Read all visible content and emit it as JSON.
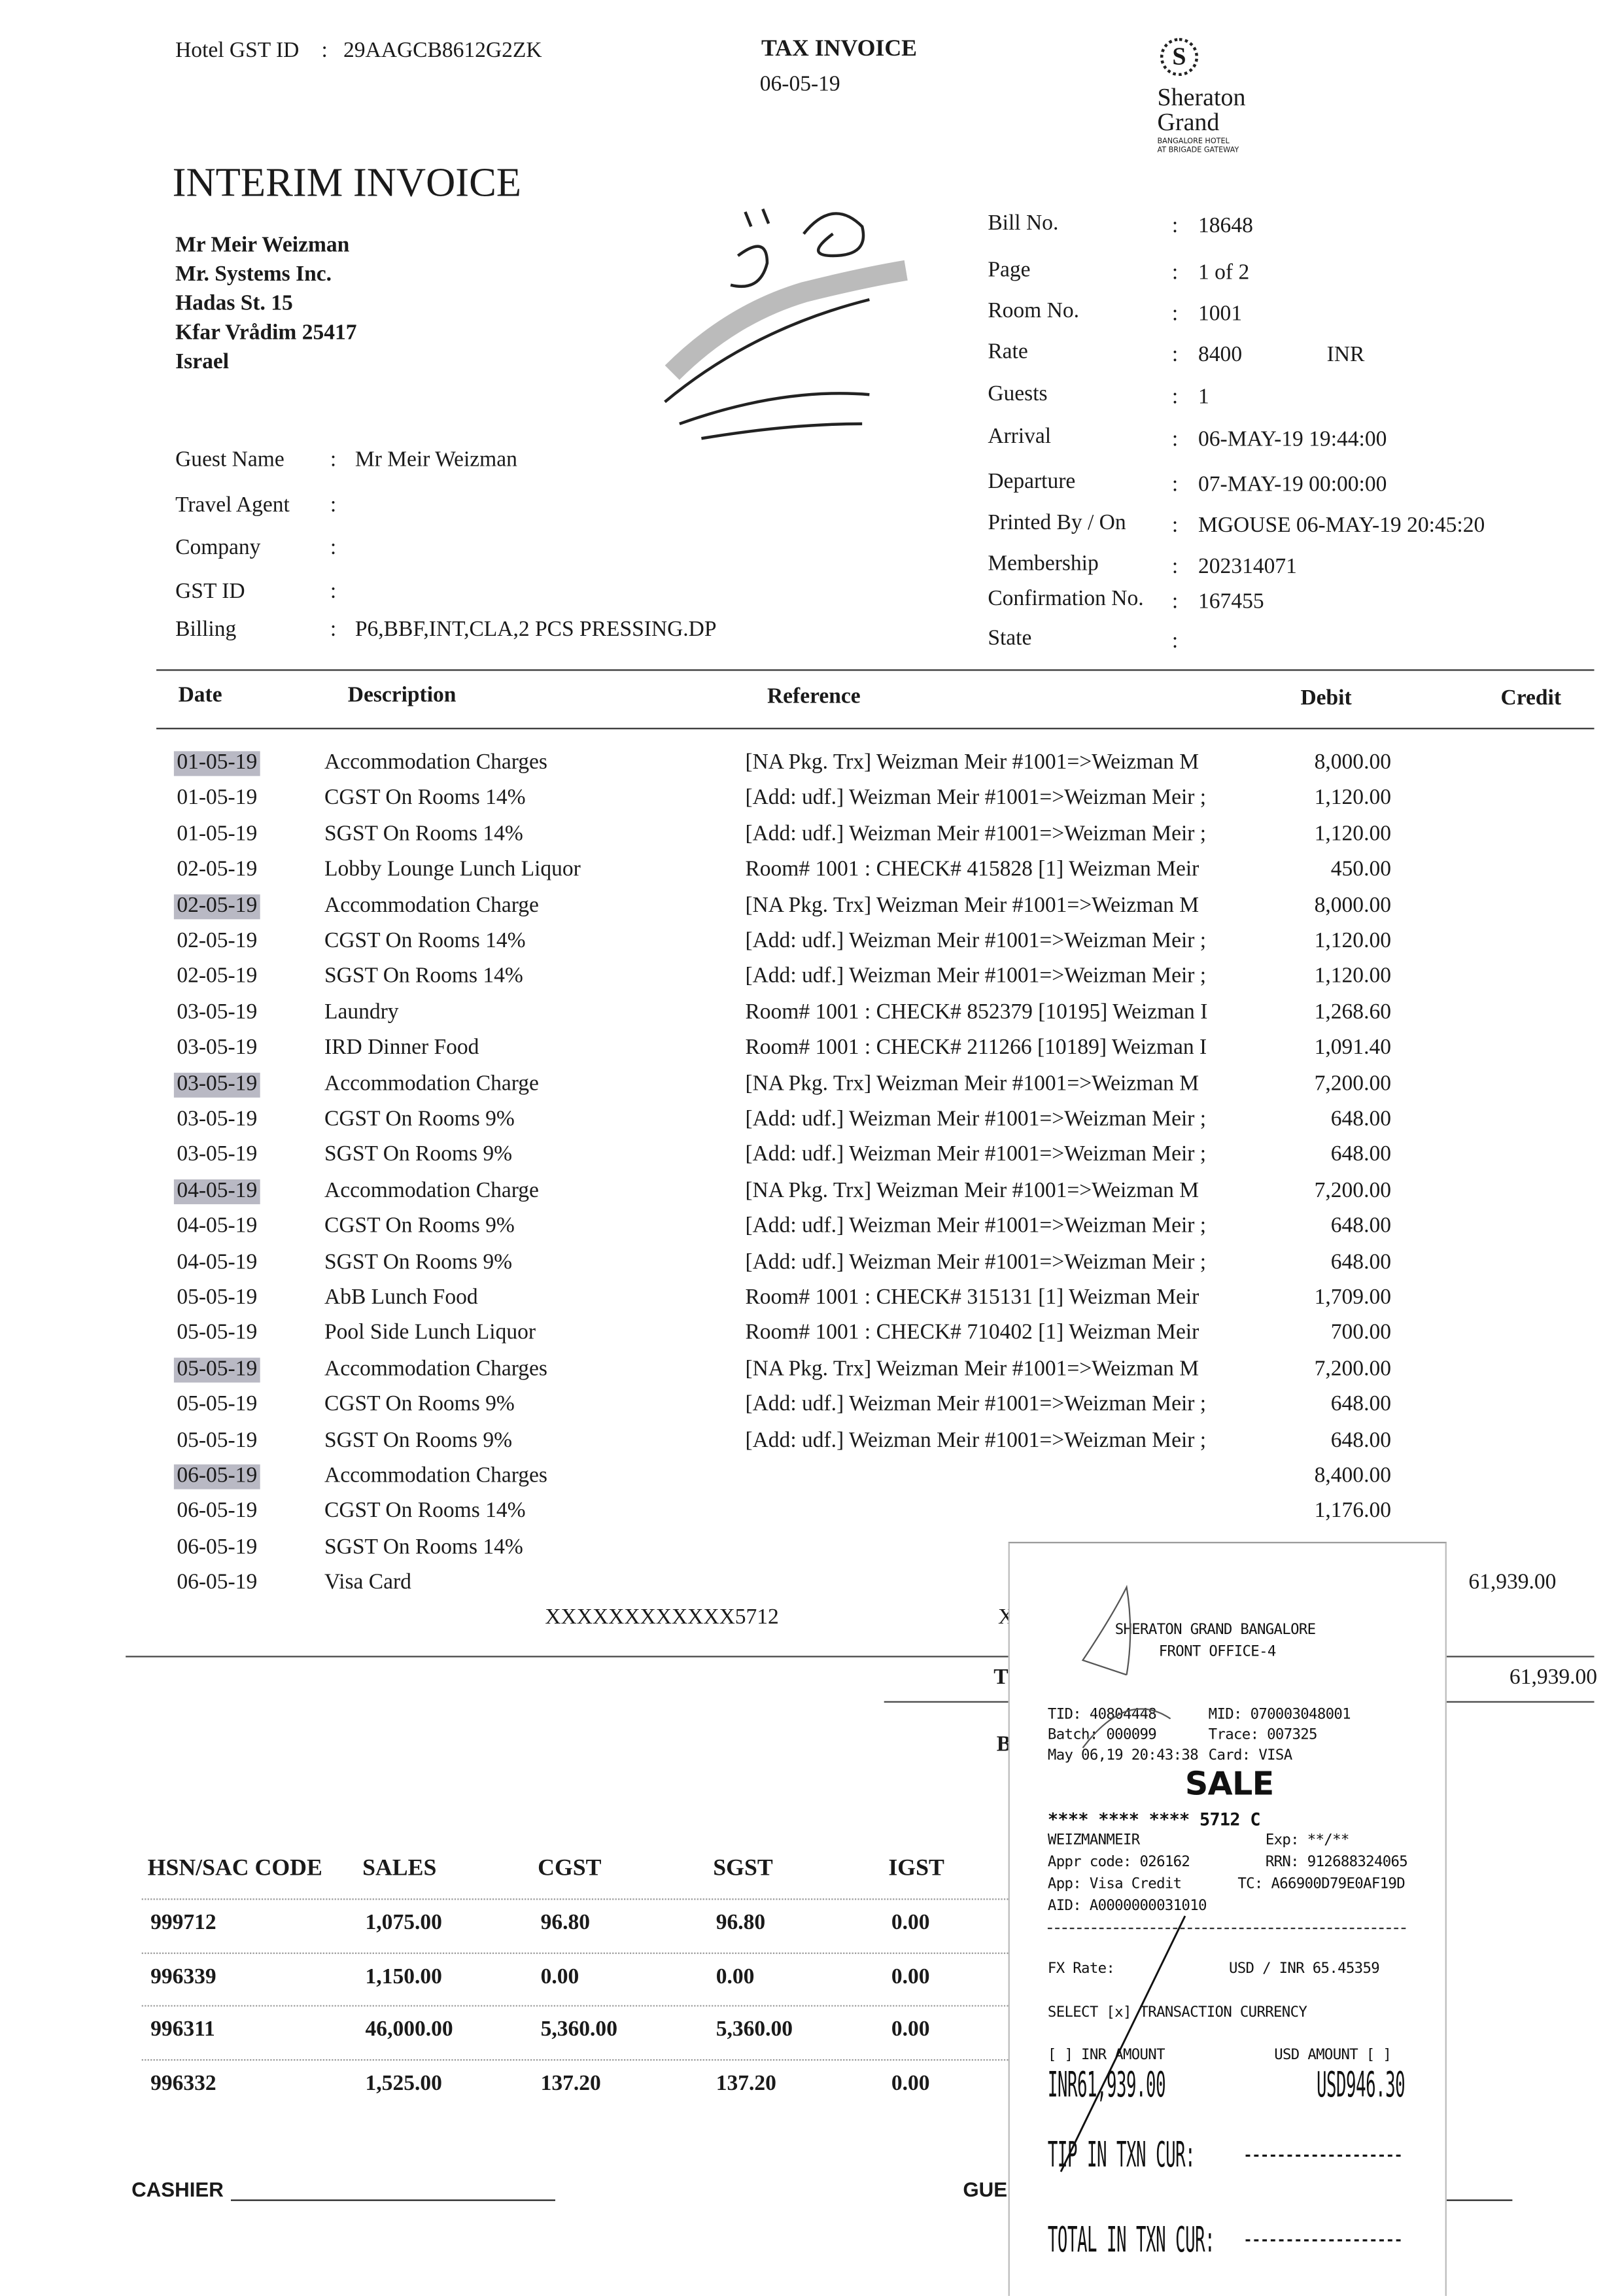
{
  "header": {
    "hotel_gst_label": "Hotel GST ID",
    "hotel_gst_id": "29AAGCB8612G2ZK",
    "doc_type": "TAX INVOICE",
    "doc_date": "06-05-19",
    "title": "INTERIM INVOICE",
    "logo": {
      "brand_line1": "Sheraton",
      "brand_line2": "Grand",
      "sub1": "BANGALORE HOTEL",
      "sub2": "AT BRIGADE GATEWAY"
    }
  },
  "address": [
    "Mr Meir Weizman",
    "Mr. Systems Inc.",
    "Hadas St. 15",
    "Kfar Vrådim  25417",
    "Israel"
  ],
  "guest_fields": [
    {
      "label": "Guest Name",
      "value": "Mr Meir Weizman"
    },
    {
      "label": "Travel Agent",
      "value": ""
    },
    {
      "label": "Company",
      "value": ""
    },
    {
      "label": "GST ID",
      "value": ""
    },
    {
      "label": "Billing",
      "value": "P6,BBF,INT,CLA,2 PCS PRESSING.DP"
    }
  ],
  "bill_fields": [
    {
      "label": "Bill  No.",
      "value": "18648"
    },
    {
      "label": "Page",
      "value": "1 of 2"
    },
    {
      "label": "Room No.",
      "value": "1001"
    },
    {
      "label": "Rate",
      "value": "8400",
      "extra": "INR"
    },
    {
      "label": "Guests",
      "value": "1"
    },
    {
      "label": "Arrival",
      "value": "06-MAY-19 19:44:00"
    },
    {
      "label": "Departure",
      "value": "07-MAY-19 00:00:00"
    },
    {
      "label": "Printed By / On",
      "value": "MGOUSE 06-MAY-19 20:45:20"
    },
    {
      "label": "Membership",
      "value": "202314071"
    },
    {
      "label": "Confirmation No.",
      "value": "167455"
    },
    {
      "label": "State",
      "value": ""
    }
  ],
  "table": {
    "columns": [
      "Date",
      "Description",
      "Reference",
      "Debit",
      "Credit"
    ],
    "rows": [
      {
        "date": "01-05-19",
        "desc": "Accommodation Charges",
        "ref": "[NA Pkg. Trx] Weizman Meir #1001=>Weizman M",
        "debit": "8,000.00",
        "credit": "",
        "hl": true
      },
      {
        "date": "01-05-19",
        "desc": "CGST On Rooms 14%",
        "ref": "[Add: udf.] Weizman Meir #1001=>Weizman Meir ;",
        "debit": "1,120.00",
        "credit": ""
      },
      {
        "date": "01-05-19",
        "desc": "SGST On Rooms 14%",
        "ref": "[Add: udf.] Weizman Meir #1001=>Weizman Meir ;",
        "debit": "1,120.00",
        "credit": ""
      },
      {
        "date": "02-05-19",
        "desc": "Lobby Lounge Lunch Liquor",
        "ref": "Room# 1001 : CHECK# 415828 [1] Weizman Meir",
        "debit": "450.00",
        "credit": ""
      },
      {
        "date": "02-05-19",
        "desc": "Accommodation Charge",
        "ref": "[NA Pkg. Trx] Weizman Meir #1001=>Weizman M",
        "debit": "8,000.00",
        "credit": "",
        "hl": true
      },
      {
        "date": "02-05-19",
        "desc": "CGST On Rooms 14%",
        "ref": "[Add: udf.] Weizman Meir #1001=>Weizman Meir ;",
        "debit": "1,120.00",
        "credit": ""
      },
      {
        "date": "02-05-19",
        "desc": "SGST On Rooms 14%",
        "ref": "[Add: udf.] Weizman Meir #1001=>Weizman Meir ;",
        "debit": "1,120.00",
        "credit": ""
      },
      {
        "date": "03-05-19",
        "desc": "Laundry",
        "ref": "Room# 1001 : CHECK# 852379 [10195] Weizman I",
        "debit": "1,268.60",
        "credit": ""
      },
      {
        "date": "03-05-19",
        "desc": "IRD Dinner Food",
        "ref": "Room# 1001 : CHECK# 211266 [10189] Weizman I",
        "debit": "1,091.40",
        "credit": ""
      },
      {
        "date": "03-05-19",
        "desc": "Accommodation Charge",
        "ref": "[NA Pkg. Trx] Weizman Meir #1001=>Weizman M",
        "debit": "7,200.00",
        "credit": "",
        "hl": true
      },
      {
        "date": "03-05-19",
        "desc": "CGST On Rooms 9%",
        "ref": "[Add: udf.] Weizman Meir #1001=>Weizman Meir ;",
        "debit": "648.00",
        "credit": ""
      },
      {
        "date": "03-05-19",
        "desc": "SGST On Rooms 9%",
        "ref": "[Add: udf.] Weizman Meir #1001=>Weizman Meir ;",
        "debit": "648.00",
        "credit": ""
      },
      {
        "date": "04-05-19",
        "desc": "Accommodation Charge",
        "ref": "[NA Pkg. Trx] Weizman Meir #1001=>Weizman M",
        "debit": "7,200.00",
        "credit": "",
        "hl": true
      },
      {
        "date": "04-05-19",
        "desc": "CGST On Rooms 9%",
        "ref": "[Add: udf.] Weizman Meir #1001=>Weizman Meir ;",
        "debit": "648.00",
        "credit": ""
      },
      {
        "date": "04-05-19",
        "desc": "SGST On Rooms 9%",
        "ref": "[Add: udf.] Weizman Meir #1001=>Weizman Meir ;",
        "debit": "648.00",
        "credit": ""
      },
      {
        "date": "05-05-19",
        "desc": "AbB Lunch Food",
        "ref": "Room# 1001 : CHECK# 315131 [1] Weizman Meir",
        "debit": "1,709.00",
        "credit": ""
      },
      {
        "date": "05-05-19",
        "desc": "Pool Side Lunch Liquor",
        "ref": "Room# 1001 : CHECK# 710402 [1] Weizman Meir",
        "debit": "700.00",
        "credit": ""
      },
      {
        "date": "05-05-19",
        "desc": "Accommodation Charges",
        "ref": "[NA Pkg. Trx] Weizman Meir #1001=>Weizman M",
        "debit": "7,200.00",
        "credit": "",
        "hl": true
      },
      {
        "date": "05-05-19",
        "desc": "CGST On Rooms 9%",
        "ref": "[Add: udf.] Weizman Meir #1001=>Weizman Meir ;",
        "debit": "648.00",
        "credit": ""
      },
      {
        "date": "05-05-19",
        "desc": "SGST On Rooms 9%",
        "ref": "[Add: udf.] Weizman Meir #1001=>Weizman Meir ;",
        "debit": "648.00",
        "credit": ""
      },
      {
        "date": "06-05-19",
        "desc": "Accommodation Charges",
        "ref": "",
        "debit": "8,400.00",
        "credit": "",
        "hl": true
      },
      {
        "date": "06-05-19",
        "desc": "CGST On Rooms 14%",
        "ref": "",
        "debit": "1,176.00",
        "credit": ""
      },
      {
        "date": "06-05-19",
        "desc": "SGST On Rooms 14%",
        "ref": "",
        "debit": "",
        "credit": ""
      },
      {
        "date": "06-05-19",
        "desc": "Visa Card",
        "ref": "",
        "debit": "",
        "credit": "61,939.00"
      }
    ],
    "card_number": "XXXXXXXXXXXX5712",
    "card_partial": "X",
    "total_partial": "T",
    "total_credit": "61,939.00",
    "balance_partial": "B"
  },
  "tax_table": {
    "columns": [
      "HSN/SAC CODE",
      "SALES",
      "CGST",
      "SGST",
      "IGST"
    ],
    "rows": [
      [
        "999712",
        "1,075.00",
        "96.80",
        "96.80",
        "0.00"
      ],
      [
        "996339",
        "1,150.00",
        "0.00",
        "0.00",
        "0.00"
      ],
      [
        "996311",
        "46,000.00",
        "5,360.00",
        "5,360.00",
        "0.00"
      ],
      [
        "996332",
        "1,525.00",
        "137.20",
        "137.20",
        "0.00"
      ]
    ]
  },
  "footer": {
    "cashier_label": "CASHIER",
    "guest_label_partial": "GUE"
  },
  "receipt": {
    "merchant": "SHERATON GRAND BANGALORE",
    "terminal": "FRONT OFFICE-4",
    "tid": "TID:  40804448",
    "mid": "MID:  070003048001",
    "batch": "Batch:  000099",
    "trace": "Trace:  007325",
    "datetime": "May 06,19 20:43:38",
    "card": "Card:  VISA",
    "type": "SALE",
    "masked_pan": "**** **** **** 5712 C",
    "name": "WEIZMANMEIR",
    "exp": "Exp:  **/**",
    "appr": "Appr code: 026162",
    "rrn": "RRN: 912688324065",
    "app": "App: Visa Credit",
    "tc": "TC: A66900D79E0AF19D",
    "aid": "AID: A0000000031010",
    "fx_label": "FX Rate:",
    "fx_value": "USD / INR   65.45359",
    "select": "SELECT [x] TRANSACTION CURRENCY",
    "inr_label": "[ ] INR AMOUNT",
    "usd_label": "USD AMOUNT  [ ]",
    "inr_amount": "INR61,939.00",
    "usd_amount": "USD946.30",
    "tip": "TIP IN TXN CUR:",
    "total": "TOTAL IN TXN CUR:",
    "blank": "-------------------"
  }
}
